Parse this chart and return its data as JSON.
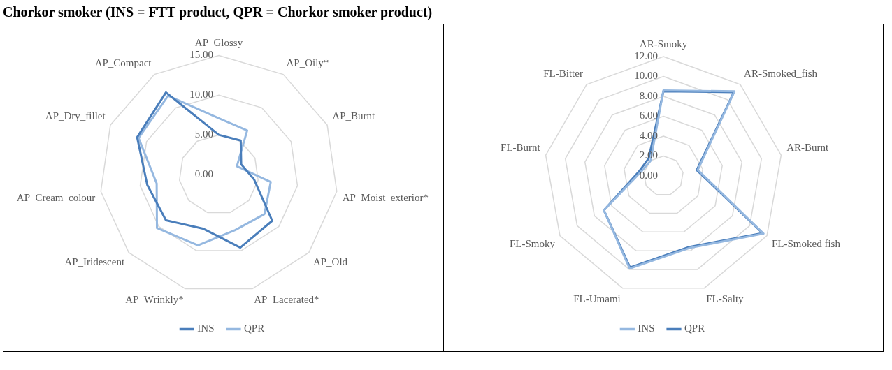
{
  "chart_data": [
    {
      "type": "radar",
      "title": "Chorkor smoker (INS = FTT product, QPR = Chorkor smoker product)",
      "categories": [
        "AP_Glossy",
        "AP_Oily*",
        "AP_Burnt",
        "AP_Moist_exterior*",
        "AP_Old",
        "AP_Lacerated*",
        "AP_Wrinkly*",
        "AP_Iridescent",
        "AP_Cream_colour",
        "AP_Dry_fillet",
        "AP_Compact"
      ],
      "series": [
        {
          "name": "INS",
          "color": "#4a7ebb",
          "values": [
            5.0,
            5.1,
            3.1,
            4.5,
            8.9,
            9.6,
            7.1,
            8.8,
            9.1,
            11.3,
            12.3
          ]
        },
        {
          "name": "QPR",
          "color": "#95b8e0",
          "values": [
            7.1,
            6.6,
            2.5,
            6.6,
            7.6,
            7.3,
            9.3,
            10.3,
            7.9,
            11.1,
            11.8
          ]
        }
      ],
      "ylim": [
        0,
        15
      ],
      "yticks": [
        {
          "value": 0,
          "label": "0.00"
        },
        {
          "value": 5,
          "label": "5.00"
        },
        {
          "value": 10,
          "label": "10.00"
        },
        {
          "value": 15,
          "label": "15.00"
        }
      ],
      "grid": true,
      "legend": "bottom",
      "marker": "none"
    },
    {
      "type": "radar",
      "categories": [
        "AR-Smoky",
        "AR-Smoked_fish",
        "AR-Burnt",
        "FL-Smoked fish",
        "FL-Salty",
        "FL-Umami",
        "FL-Smoky",
        "FL-Burnt",
        "FL-Bitter"
      ],
      "series": [
        {
          "name": "INS",
          "color": "#95b8e0",
          "values": [
            8.6,
            11.1,
            3.5,
            11.6,
            7.7,
            9.9,
            6.9,
            2.3,
            2.0
          ]
        },
        {
          "name": "QPR",
          "color": "#4a7ebb",
          "values": [
            8.5,
            11.0,
            3.4,
            11.5,
            7.6,
            9.8,
            6.9,
            2.5,
            2.3
          ]
        }
      ],
      "ylim": [
        0,
        12
      ],
      "yticks": [
        {
          "value": 0,
          "label": "0.00"
        },
        {
          "value": 2,
          "label": "2.00"
        },
        {
          "value": 4,
          "label": "4.00"
        },
        {
          "value": 6,
          "label": "6.00"
        },
        {
          "value": 8,
          "label": "8.00"
        },
        {
          "value": 10,
          "label": "10.00"
        },
        {
          "value": 12,
          "label": "12.00"
        }
      ],
      "grid": true,
      "legend": "bottom",
      "marker": "none"
    }
  ]
}
